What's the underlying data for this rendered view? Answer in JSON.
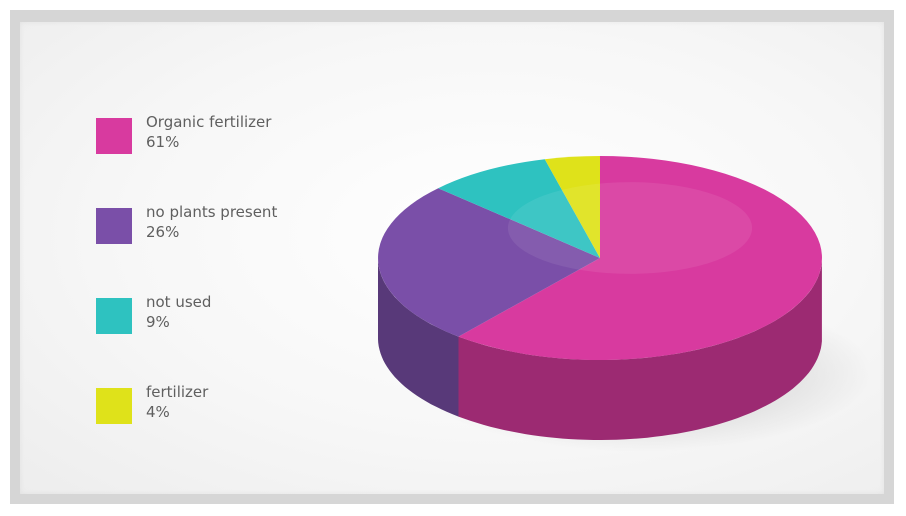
{
  "chart_data": {
    "type": "pie",
    "title": "",
    "legend_position": "left",
    "slices": [
      {
        "label": "Organic fertilizer",
        "value": 61,
        "value_label": "61%",
        "color": "#d83a9f"
      },
      {
        "label": "no plants present",
        "value": 26,
        "value_label": "26%",
        "color": "#7a4fa8"
      },
      {
        "label": "not used",
        "value": 9,
        "value_label": "9%",
        "color": "#2ec2c0"
      },
      {
        "label": "fertilizer",
        "value": 4,
        "value_label": "4%",
        "color": "#dfe21a"
      }
    ]
  }
}
